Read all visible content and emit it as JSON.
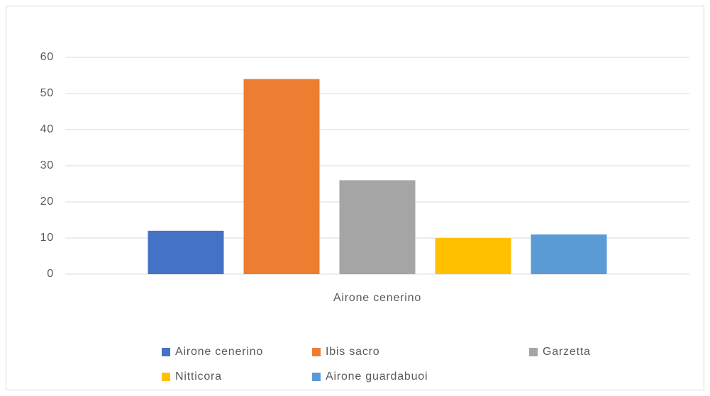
{
  "chart_data": {
    "type": "bar",
    "categories": [
      "Airone cenerino"
    ],
    "series": [
      {
        "name": "Airone cenerino",
        "color": "#4472c4",
        "values": [
          12
        ]
      },
      {
        "name": "Ibis sacro",
        "color": "#ed7d31",
        "values": [
          54
        ]
      },
      {
        "name": "Garzetta",
        "color": "#a5a5a5",
        "values": [
          26
        ]
      },
      {
        "name": "Nitticora",
        "color": "#ffc000",
        "values": [
          10
        ]
      },
      {
        "name": "Airone guardabuoi",
        "color": "#5b9bd5",
        "values": [
          11
        ]
      }
    ],
    "ylim": [
      0,
      60
    ],
    "yticks": [
      0,
      10,
      20,
      30,
      40,
      50,
      60
    ],
    "grid": true,
    "legend": "bottom"
  }
}
